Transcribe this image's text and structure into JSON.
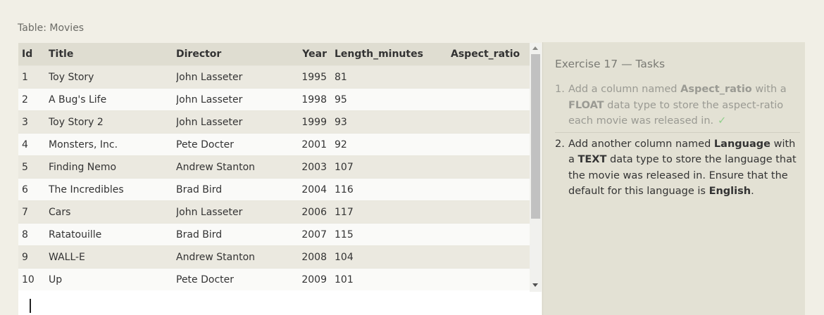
{
  "table": {
    "caption": "Table: Movies",
    "columns": [
      "Id",
      "Title",
      "Director",
      "Year",
      "Length_minutes",
      "Aspect_ratio"
    ],
    "rows": [
      [
        "1",
        "Toy Story",
        "John Lasseter",
        "1995",
        "81",
        ""
      ],
      [
        "2",
        "A Bug's Life",
        "John Lasseter",
        "1998",
        "95",
        ""
      ],
      [
        "3",
        "Toy Story 2",
        "John Lasseter",
        "1999",
        "93",
        ""
      ],
      [
        "4",
        "Monsters, Inc.",
        "Pete Docter",
        "2001",
        "92",
        ""
      ],
      [
        "5",
        "Finding Nemo",
        "Andrew Stanton",
        "2003",
        "107",
        ""
      ],
      [
        "6",
        "The Incredibles",
        "Brad Bird",
        "2004",
        "116",
        ""
      ],
      [
        "7",
        "Cars",
        "John Lasseter",
        "2006",
        "117",
        ""
      ],
      [
        "8",
        "Ratatouille",
        "Brad Bird",
        "2007",
        "115",
        ""
      ],
      [
        "9",
        "WALL-E",
        "Andrew Stanton",
        "2008",
        "104",
        ""
      ],
      [
        "10",
        "Up",
        "Pete Docter",
        "2009",
        "101",
        ""
      ]
    ]
  },
  "query": {
    "value": ""
  },
  "exercise": {
    "heading": "Exercise 17 — Tasks",
    "tasks": [
      {
        "number": "1.",
        "status": "done",
        "parts": [
          {
            "text": "Add a column named ",
            "bold": false
          },
          {
            "text": "Aspect_ratio",
            "bold": true
          },
          {
            "text": " with a ",
            "bold": false
          },
          {
            "text": "FLOAT",
            "bold": true
          },
          {
            "text": " data type to store the aspect-ratio each movie was released in.",
            "bold": false
          }
        ],
        "check": "✓"
      },
      {
        "number": "2.",
        "status": "active",
        "parts": [
          {
            "text": "Add another column named ",
            "bold": false
          },
          {
            "text": "Language",
            "bold": true
          },
          {
            "text": " with a ",
            "bold": false
          },
          {
            "text": "TEXT",
            "bold": true
          },
          {
            "text": " data type to store the language that the movie was released in. Ensure that the default for this language is ",
            "bold": false
          },
          {
            "text": "English",
            "bold": true
          },
          {
            "text": ".",
            "bold": false
          }
        ]
      }
    ]
  },
  "colors": {
    "background": "#f1efe6",
    "header_row": "#dfddd1",
    "odd_row": "#ebe9e0",
    "even_row": "#fafaf8",
    "task_panel": "#e3e1d4",
    "done_text": "#9a9a93",
    "check_mark": "#8fd08a"
  },
  "icons": {
    "scroll_up": "scroll-up-arrow-icon",
    "scroll_down": "scroll-down-arrow-icon",
    "check": "check-icon"
  }
}
